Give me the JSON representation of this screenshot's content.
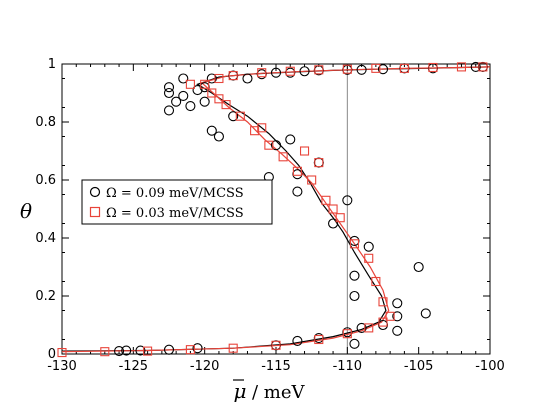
{
  "chart_data": {
    "type": "scatter",
    "xlabel_symbol": "μ",
    "xlabel_unit": "/  meV",
    "ylabel": "θ",
    "xlim": [
      -130,
      -100
    ],
    "ylim": [
      0,
      1
    ],
    "xticks": [
      -130,
      -125,
      -120,
      -115,
      -110,
      -105,
      -100
    ],
    "yticks": [
      0,
      0.2,
      0.4,
      0.6,
      0.8,
      1
    ],
    "xtick_labels": [
      "-130",
      "-125",
      "-120",
      "-115",
      "-110",
      "-105",
      "-100"
    ],
    "ytick_labels": [
      "0",
      "0.2",
      "0.4",
      "0.6",
      "0.8",
      "1"
    ],
    "grid": false,
    "legend_position": "center-left",
    "reference_line_x": -110,
    "series": [
      {
        "name": "Ω = 0.09 meV/MCSS",
        "color": "#000000",
        "marker": "circle",
        "points": [
          [
            -126,
            0.01
          ],
          [
            -125.5,
            0.012
          ],
          [
            -124.5,
            0.012
          ],
          [
            -122.5,
            0.015
          ],
          [
            -120.5,
            0.02
          ],
          [
            -115,
            0.03
          ],
          [
            -113.5,
            0.045
          ],
          [
            -112,
            0.055
          ],
          [
            -110,
            0.075
          ],
          [
            -109,
            0.09
          ],
          [
            -107.5,
            0.1
          ],
          [
            -106.5,
            0.13
          ],
          [
            -106.5,
            0.08
          ],
          [
            -109.5,
            0.035
          ],
          [
            -104.5,
            0.14
          ],
          [
            -105,
            0.3
          ],
          [
            -106.5,
            0.175
          ],
          [
            -109.5,
            0.2
          ],
          [
            -109.5,
            0.27
          ],
          [
            -108.5,
            0.37
          ],
          [
            -109.5,
            0.39
          ],
          [
            -110,
            0.53
          ],
          [
            -111,
            0.45
          ],
          [
            -112,
            0.66
          ],
          [
            -113.5,
            0.62
          ],
          [
            -113.5,
            0.56
          ],
          [
            -115,
            0.72
          ],
          [
            -114,
            0.74
          ],
          [
            -115.5,
            0.61
          ],
          [
            -118,
            0.82
          ],
          [
            -119,
            0.75
          ],
          [
            -119.5,
            0.77
          ],
          [
            -120,
            0.87
          ],
          [
            -121,
            0.855
          ],
          [
            -122.5,
            0.84
          ],
          [
            -122.5,
            0.9
          ],
          [
            -122,
            0.87
          ],
          [
            -122.5,
            0.92
          ],
          [
            -121.5,
            0.95
          ],
          [
            -121.5,
            0.89
          ],
          [
            -120.5,
            0.91
          ],
          [
            -120,
            0.92
          ],
          [
            -119.5,
            0.95
          ],
          [
            -118,
            0.96
          ],
          [
            -117,
            0.95
          ],
          [
            -116,
            0.965
          ],
          [
            -115,
            0.97
          ],
          [
            -114,
            0.97
          ],
          [
            -113,
            0.975
          ],
          [
            -112,
            0.978
          ],
          [
            -110,
            0.98
          ],
          [
            -109,
            0.98
          ],
          [
            -107.5,
            0.982
          ],
          [
            -106,
            0.985
          ],
          [
            -104,
            0.985
          ],
          [
            -101,
            0.99
          ],
          [
            -100.5,
            0.99
          ]
        ]
      },
      {
        "name": "Ω = 0.03 meV/MCSS",
        "color": "#e8443a",
        "marker": "square",
        "points": [
          [
            -130,
            0.005
          ],
          [
            -127,
            0.008
          ],
          [
            -124,
            0.01
          ],
          [
            -121,
            0.015
          ],
          [
            -118,
            0.02
          ],
          [
            -115,
            0.03
          ],
          [
            -112,
            0.05
          ],
          [
            -110,
            0.07
          ],
          [
            -108.5,
            0.09
          ],
          [
            -107.5,
            0.11
          ],
          [
            -107,
            0.13
          ],
          [
            -107.5,
            0.18
          ],
          [
            -108,
            0.25
          ],
          [
            -108.5,
            0.33
          ],
          [
            -109.5,
            0.38
          ],
          [
            -110.5,
            0.47
          ],
          [
            -111.5,
            0.53
          ],
          [
            -112.5,
            0.6
          ],
          [
            -113.5,
            0.63
          ],
          [
            -114.5,
            0.68
          ],
          [
            -115.5,
            0.72
          ],
          [
            -116.5,
            0.77
          ],
          [
            -117.5,
            0.82
          ],
          [
            -118.5,
            0.86
          ],
          [
            -119.5,
            0.9
          ],
          [
            -120,
            0.93
          ],
          [
            -119,
            0.95
          ],
          [
            -118,
            0.96
          ],
          [
            -116,
            0.97
          ],
          [
            -114,
            0.975
          ],
          [
            -112,
            0.98
          ],
          [
            -110,
            0.982
          ],
          [
            -108,
            0.985
          ],
          [
            -106,
            0.985
          ],
          [
            -104,
            0.988
          ],
          [
            -102,
            0.99
          ],
          [
            -100.5,
            0.99
          ],
          [
            -113,
            0.7
          ],
          [
            -112,
            0.66
          ],
          [
            -111,
            0.5
          ],
          [
            -116,
            0.78
          ],
          [
            -119,
            0.88
          ],
          [
            -121,
            0.93
          ]
        ]
      }
    ],
    "curves": [
      {
        "color": "#000000",
        "points": [
          [
            -130,
            0.01
          ],
          [
            -124,
            0.012
          ],
          [
            -118,
            0.02
          ],
          [
            -114,
            0.035
          ],
          [
            -111,
            0.06
          ],
          [
            -109,
            0.085
          ],
          [
            -107.8,
            0.11
          ],
          [
            -107.3,
            0.15
          ],
          [
            -107.6,
            0.2
          ],
          [
            -108.5,
            0.27
          ],
          [
            -109.5,
            0.35
          ],
          [
            -110.3,
            0.42
          ],
          [
            -111,
            0.47
          ],
          [
            -111.8,
            0.52
          ],
          [
            -112.6,
            0.59
          ],
          [
            -113.4,
            0.65
          ],
          [
            -114.3,
            0.7
          ],
          [
            -115.5,
            0.76
          ],
          [
            -117,
            0.82
          ],
          [
            -118.3,
            0.86
          ],
          [
            -119.5,
            0.9
          ],
          [
            -120.5,
            0.93
          ],
          [
            -119,
            0.955
          ],
          [
            -117,
            0.965
          ],
          [
            -114,
            0.972
          ],
          [
            -111,
            0.978
          ],
          [
            -108,
            0.982
          ],
          [
            -104,
            0.986
          ],
          [
            -100,
            0.99
          ]
        ]
      },
      {
        "color": "#e8443a",
        "points": [
          [
            -130,
            0.008
          ],
          [
            -124,
            0.012
          ],
          [
            -118,
            0.02
          ],
          [
            -114,
            0.032
          ],
          [
            -111,
            0.055
          ],
          [
            -109,
            0.08
          ],
          [
            -107.6,
            0.11
          ],
          [
            -107.1,
            0.15
          ],
          [
            -107.5,
            0.22
          ],
          [
            -108.4,
            0.3
          ],
          [
            -109.5,
            0.38
          ],
          [
            -110.5,
            0.45
          ],
          [
            -111.5,
            0.52
          ],
          [
            -112.5,
            0.59
          ],
          [
            -113.5,
            0.64
          ],
          [
            -114.6,
            0.69
          ],
          [
            -115.8,
            0.74
          ],
          [
            -117,
            0.8
          ],
          [
            -118.3,
            0.85
          ],
          [
            -119.4,
            0.9
          ],
          [
            -120.2,
            0.935
          ],
          [
            -118.5,
            0.958
          ],
          [
            -116,
            0.968
          ],
          [
            -113,
            0.975
          ],
          [
            -110,
            0.98
          ],
          [
            -106,
            0.985
          ],
          [
            -102,
            0.988
          ],
          [
            -100,
            0.99
          ]
        ]
      }
    ]
  }
}
